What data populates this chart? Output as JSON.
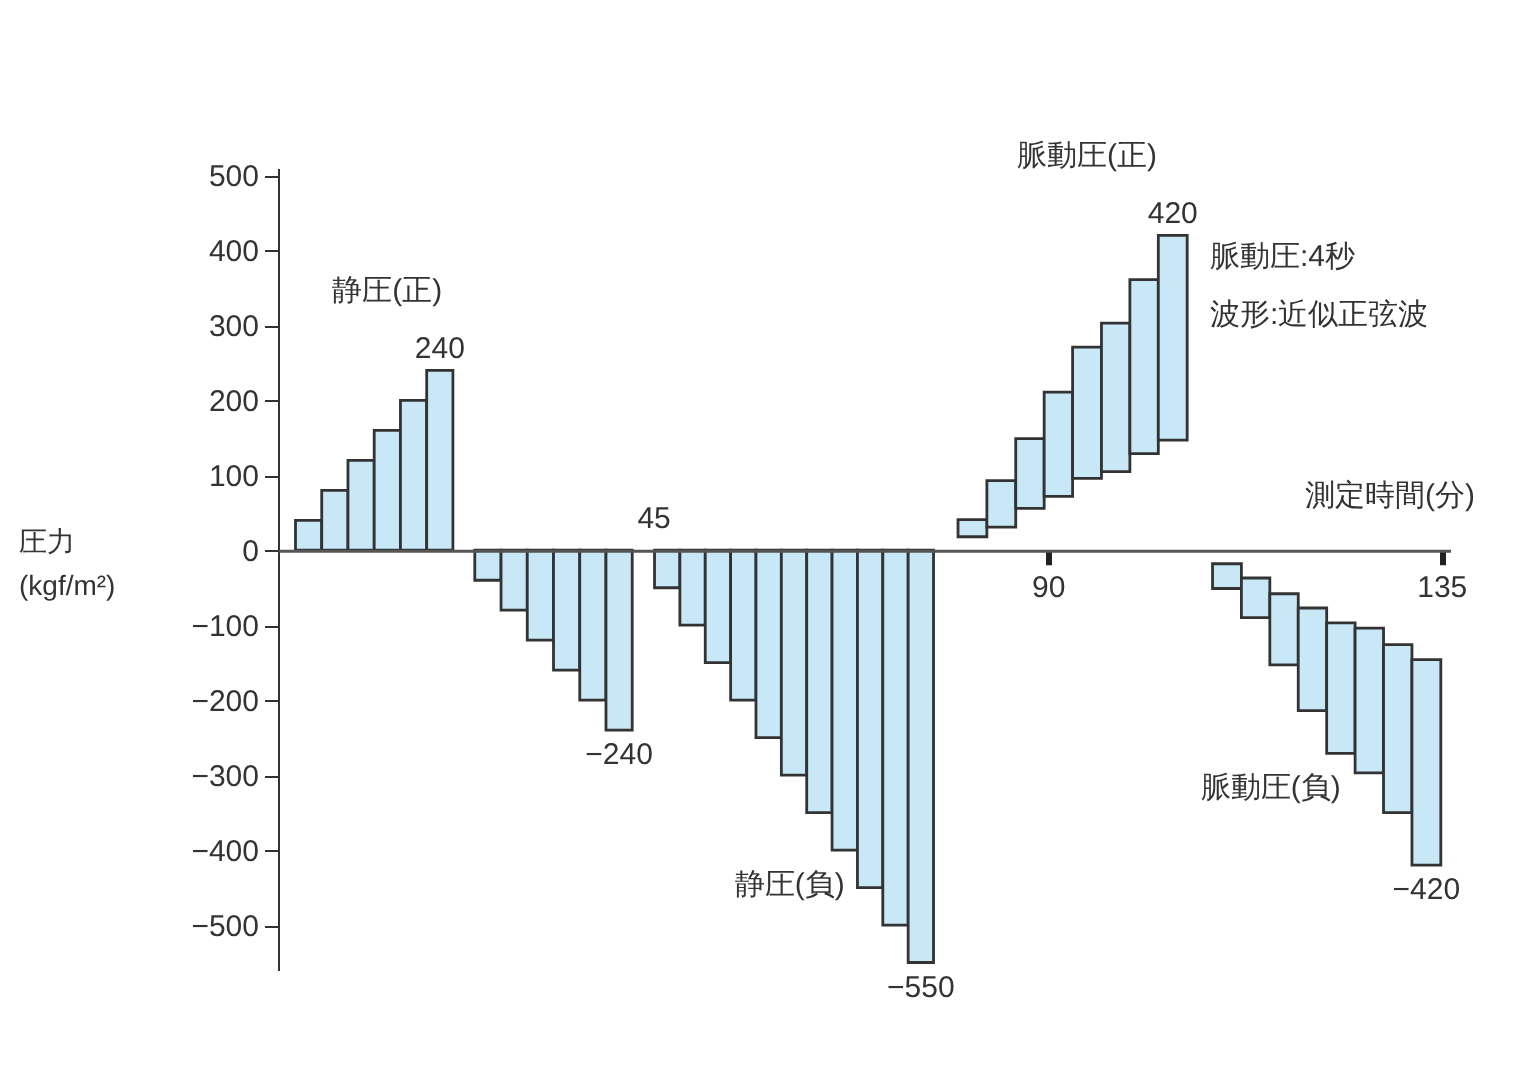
{
  "chart_data": {
    "type": "bar",
    "xlabel": "測定時間(分)",
    "ylabel": "圧力\n(kgf/m²)",
    "xlim": [
      2,
      136
    ],
    "xticks": [
      90,
      135
    ],
    "ylim": [
      -560,
      510
    ],
    "yticks": [
      -500,
      -400,
      -300,
      -200,
      -100,
      0,
      100,
      200,
      300,
      400,
      500
    ],
    "annotations": [
      "脈動圧:4秒",
      "波形:近似正弦波",
      {
        "text": "45",
        "x": 45,
        "y": 0
      }
    ],
    "series": [
      {
        "name": "静圧(正)",
        "color": "#c8e8f8",
        "x": [
          5.5,
          8.5,
          11.5,
          14.5,
          17.5,
          20.5
        ],
        "values": [
          40,
          80,
          120,
          160,
          200,
          240
        ],
        "value_labels": [
          null,
          null,
          null,
          null,
          null,
          "240"
        ]
      },
      {
        "color": "#c8e8f8",
        "x": [
          26,
          29,
          32,
          35,
          38,
          41
        ],
        "values": [
          -40,
          -80,
          -120,
          -160,
          -200,
          -240
        ],
        "value_labels": [
          null,
          null,
          null,
          null,
          null,
          "−240"
        ]
      },
      {
        "name": "静圧(負)",
        "color": "#c8e8f8",
        "x": [
          46.5,
          49.4,
          52.3,
          55.2,
          58.1,
          61.0,
          63.9,
          66.8,
          69.7,
          72.6,
          75.5
        ],
        "values": [
          -50,
          -100,
          -150,
          -200,
          -250,
          -300,
          -350,
          -400,
          -450,
          -500,
          -550
        ],
        "value_labels": [
          null,
          null,
          null,
          null,
          null,
          null,
          null,
          null,
          null,
          null,
          "−550"
        ]
      },
      {
        "name": "脈動圧(正)",
        "color": "#c8e8f8",
        "x": [
          81.4,
          84.7,
          88.0,
          91.2,
          94.5,
          97.8,
          101.0,
          104.3
        ],
        "base": [
          18,
          31,
          56,
          72,
          96,
          105,
          129,
          147
        ],
        "values": [
          23,
          62,
          93,
          139,
          175,
          198,
          232,
          273
        ],
        "value_labels": [
          null,
          null,
          null,
          null,
          null,
          null,
          null,
          "420"
        ]
      },
      {
        "name": "脈動圧(負)",
        "color": "#c8e8f8",
        "x": [
          110.5,
          113.8,
          117.0,
          120.3,
          123.5,
          126.8,
          130.0,
          133.3
        ],
        "base": [
          -18,
          -37,
          -58,
          -77,
          -97,
          -104,
          -126,
          -146
        ],
        "values": [
          -33,
          -53,
          -95,
          -137,
          -174,
          -193,
          -224,
          -274
        ],
        "value_labels": [
          null,
          null,
          null,
          null,
          null,
          null,
          null,
          "−420"
        ]
      }
    ]
  }
}
